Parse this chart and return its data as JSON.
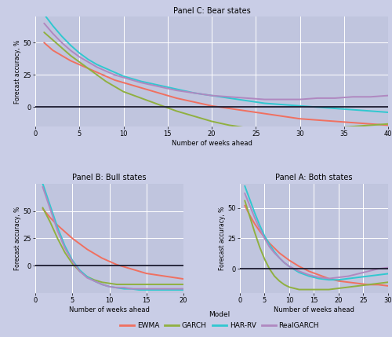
{
  "background_color": "#c9cde6",
  "plot_bg_color": "#c0c5de",
  "grid_color": "#ffffff",
  "title_C": "Panel C: Bear states",
  "title_B": "Panel B: Bull states",
  "title_A": "Panel A: Both states",
  "ylabel": "Forecast accuracy, %",
  "xlabel": "Number of weeks ahead",
  "colors": {
    "EWMA": "#f07060",
    "GARCH": "#90b040",
    "HAR_RV": "#30c8d0",
    "RealGARCH": "#b088c0"
  },
  "legend_labels": [
    "EWMA",
    "GARCH",
    "HAR-RV",
    "RealGARCH"
  ],
  "panel_C": {
    "xlim": [
      0,
      40
    ],
    "ylim": [
      -15,
      70
    ],
    "yticks": [
      0,
      25,
      50
    ],
    "xticks": [
      0,
      5,
      10,
      15,
      20,
      25,
      30,
      35,
      40
    ],
    "x": [
      1,
      2,
      3,
      4,
      5,
      6,
      7,
      8,
      9,
      10,
      12,
      14,
      16,
      18,
      20,
      22,
      24,
      26,
      28,
      30,
      32,
      34,
      36,
      38,
      40
    ],
    "EWMA": [
      50,
      44,
      40,
      36,
      33,
      30,
      27,
      24,
      21,
      19,
      15,
      11,
      7,
      4,
      1,
      -1,
      -3,
      -5,
      -7,
      -9,
      -10,
      -11,
      -12,
      -13,
      -14
    ],
    "GARCH": [
      58,
      52,
      46,
      40,
      35,
      30,
      25,
      20,
      16,
      12,
      7,
      2,
      -3,
      -7,
      -11,
      -14,
      -16,
      -17,
      -18,
      -18,
      -17,
      -16,
      -15,
      -14,
      -13
    ],
    "HAR_RV": [
      72,
      63,
      55,
      48,
      42,
      37,
      33,
      30,
      27,
      24,
      20,
      17,
      14,
      11,
      9,
      7,
      5,
      3,
      2,
      1,
      0,
      -1,
      -2,
      -3,
      -4
    ],
    "RealGARCH": [
      65,
      57,
      50,
      44,
      39,
      35,
      31,
      28,
      25,
      23,
      19,
      16,
      13,
      11,
      9,
      8,
      7,
      6,
      6,
      6,
      7,
      7,
      8,
      8,
      9
    ]
  },
  "panel_B": {
    "xlim": [
      0,
      20
    ],
    "ylim": [
      -25,
      75
    ],
    "yticks": [
      0,
      25,
      50
    ],
    "xticks": [
      0,
      5,
      10,
      15,
      20
    ],
    "x": [
      1,
      2,
      3,
      4,
      5,
      6,
      7,
      8,
      9,
      10,
      11,
      12,
      13,
      14,
      15,
      16,
      17,
      18,
      19,
      20
    ],
    "EWMA": [
      52,
      44,
      37,
      31,
      25,
      20,
      15,
      11,
      7,
      4,
      1,
      -1,
      -3,
      -5,
      -7,
      -8,
      -9,
      -10,
      -11,
      -12
    ],
    "GARCH": [
      53,
      40,
      25,
      12,
      2,
      -5,
      -10,
      -13,
      -15,
      -16,
      -17,
      -17,
      -17,
      -17,
      -17,
      -17,
      -17,
      -17,
      -17,
      -17
    ],
    "HAR_RV": [
      75,
      55,
      35,
      18,
      5,
      -4,
      -10,
      -14,
      -17,
      -19,
      -20,
      -21,
      -21,
      -22,
      -22,
      -22,
      -22,
      -22,
      -22,
      -22
    ],
    "RealGARCH": [
      72,
      52,
      32,
      16,
      4,
      -5,
      -11,
      -14,
      -17,
      -19,
      -20,
      -20,
      -21,
      -21,
      -21,
      -21,
      -21,
      -21,
      -21,
      -21
    ]
  },
  "panel_A": {
    "xlim": [
      0,
      30
    ],
    "ylim": [
      -20,
      70
    ],
    "yticks": [
      0,
      25,
      50
    ],
    "xticks": [
      0,
      5,
      10,
      15,
      20,
      25,
      30
    ],
    "x": [
      1,
      2,
      3,
      4,
      5,
      6,
      7,
      8,
      9,
      10,
      12,
      14,
      16,
      18,
      20,
      22,
      24,
      26,
      28,
      30
    ],
    "EWMA": [
      52,
      44,
      37,
      31,
      26,
      21,
      17,
      13,
      10,
      7,
      2,
      -2,
      -5,
      -8,
      -10,
      -11,
      -12,
      -13,
      -13,
      -14
    ],
    "GARCH": [
      56,
      43,
      30,
      18,
      8,
      0,
      -6,
      -10,
      -13,
      -15,
      -17,
      -17,
      -17,
      -17,
      -16,
      -15,
      -14,
      -13,
      -12,
      -11
    ],
    "HAR_RV": [
      68,
      57,
      46,
      36,
      27,
      20,
      14,
      9,
      5,
      2,
      -3,
      -6,
      -8,
      -9,
      -9,
      -8,
      -7,
      -6,
      -5,
      -4
    ],
    "RealGARCH": [
      62,
      52,
      42,
      33,
      25,
      18,
      13,
      9,
      5,
      2,
      -2,
      -5,
      -7,
      -8,
      -7,
      -6,
      -4,
      -2,
      0,
      1
    ]
  }
}
